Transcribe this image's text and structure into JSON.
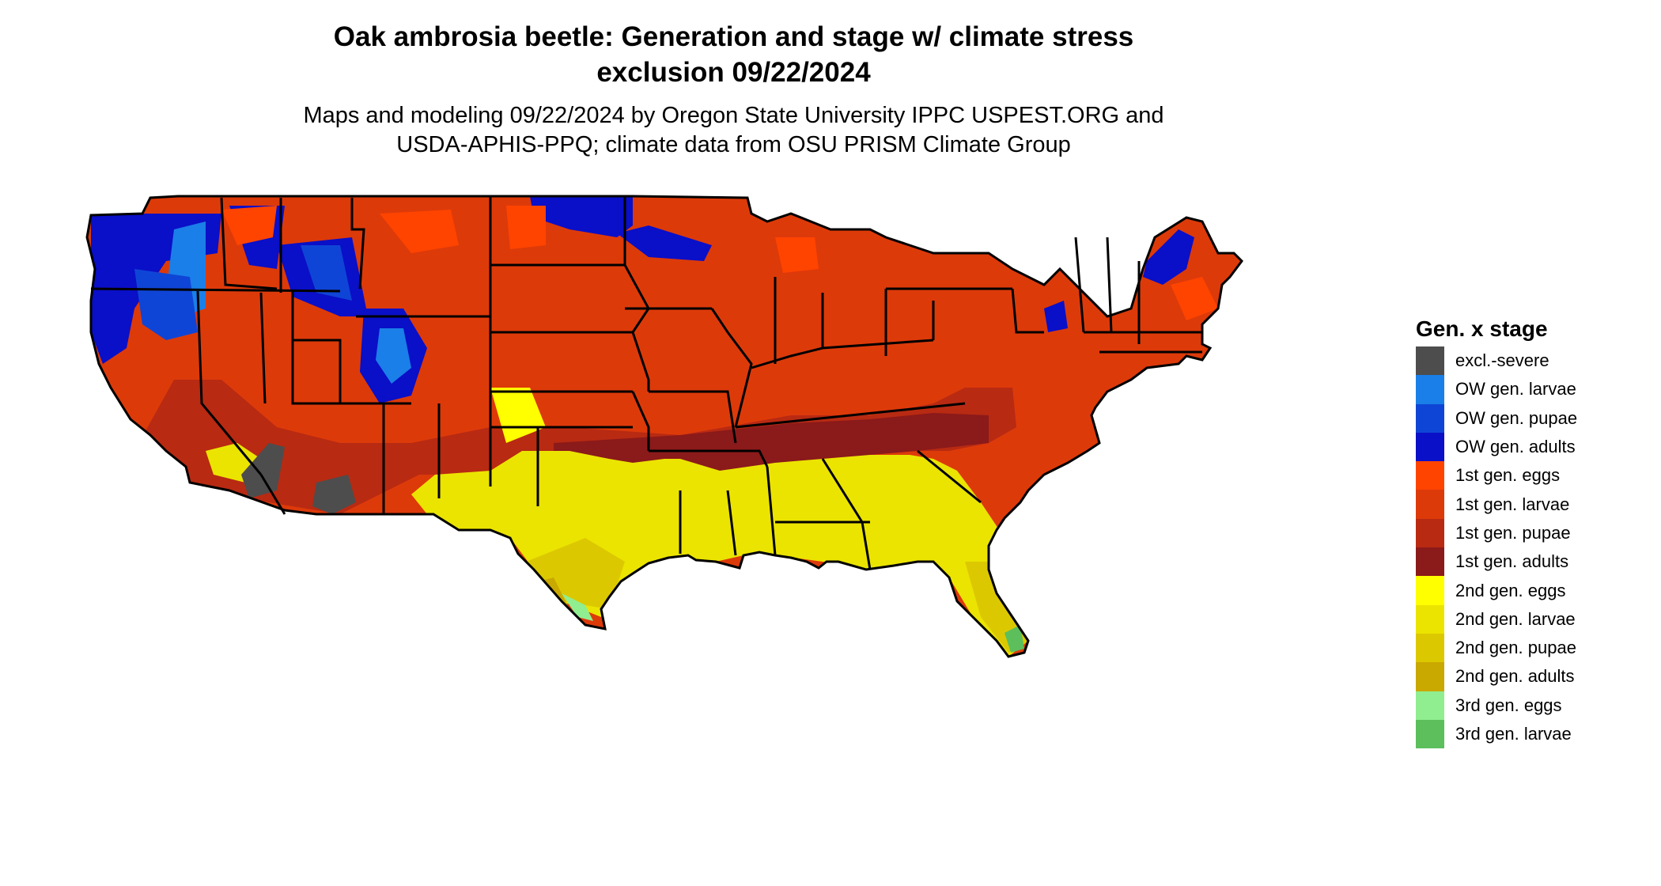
{
  "title_line1": "Oak ambrosia beetle: Generation and stage w/ climate stress",
  "title_line2": "exclusion 09/22/2024",
  "subtitle_line1": "Maps and modeling 09/22/2024 by Oregon State University IPPC USPEST.ORG and",
  "subtitle_line2": "USDA-APHIS-PPQ; climate data from OSU PRISM Climate Group",
  "legend": {
    "title": "Gen. x stage",
    "items": [
      {
        "label": "excl.-severe",
        "color": "#4d4d4d"
      },
      {
        "label": "OW gen. larvae",
        "color": "#1a7fe8"
      },
      {
        "label": "OW gen. pupae",
        "color": "#0f45d6"
      },
      {
        "label": "OW gen. adults",
        "color": "#0a0fc8"
      },
      {
        "label": "1st gen. eggs",
        "color": "#ff4400"
      },
      {
        "label": "1st gen. larvae",
        "color": "#dd3a0a"
      },
      {
        "label": "1st gen. pupae",
        "color": "#b82a12"
      },
      {
        "label": "1st gen. adults",
        "color": "#8b1a1a"
      },
      {
        "label": "2nd gen. eggs",
        "color": "#ffff00"
      },
      {
        "label": "2nd gen. larvae",
        "color": "#ebe400"
      },
      {
        "label": "2nd gen. pupae",
        "color": "#dcc800"
      },
      {
        "label": "2nd gen. adults",
        "color": "#c9a800"
      },
      {
        "label": "3rd gen. eggs",
        "color": "#90ee90"
      },
      {
        "label": "3rd gen. larvae",
        "color": "#5cbf5c"
      }
    ]
  }
}
